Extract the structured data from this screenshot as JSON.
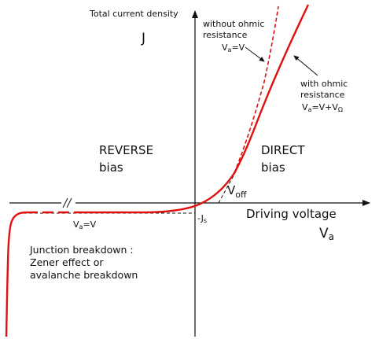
{
  "axes": {
    "y_label": "Total current density",
    "y_symbol": "J",
    "x_label": "Driving voltage",
    "x_symbol_main": "V",
    "x_symbol_sub": "a"
  },
  "regions": {
    "reverse_line1": "REVERSE",
    "reverse_line2": "bias",
    "direct_line1": "DIRECT",
    "direct_line2": "bias"
  },
  "annotations": {
    "no_ohmic_line1": "without ohmic",
    "no_ohmic_line2": "resistance",
    "no_ohmic_eq_main": "V",
    "no_ohmic_eq_sub": "a",
    "no_ohmic_eq_rest": "=V",
    "ohmic_line1": "with ohmic",
    "ohmic_line2": "resistance",
    "ohmic_eq_main": "V",
    "ohmic_eq_sub": "a",
    "ohmic_eq_rest": "=V+V",
    "ohmic_eq_sub2": "Ω",
    "voff_main": "V",
    "voff_sub": "off",
    "js_main": "J",
    "js_sub": "s",
    "reverse_eq_main": "V",
    "reverse_eq_sub": "a",
    "reverse_eq_rest": "=V",
    "breakdown_line1": "Junction breakdown :",
    "breakdown_line2": "Zener effect or",
    "breakdown_line3": "avalanche breakdown"
  },
  "colors": {
    "curve": "#e01010",
    "axes": "#111111"
  }
}
